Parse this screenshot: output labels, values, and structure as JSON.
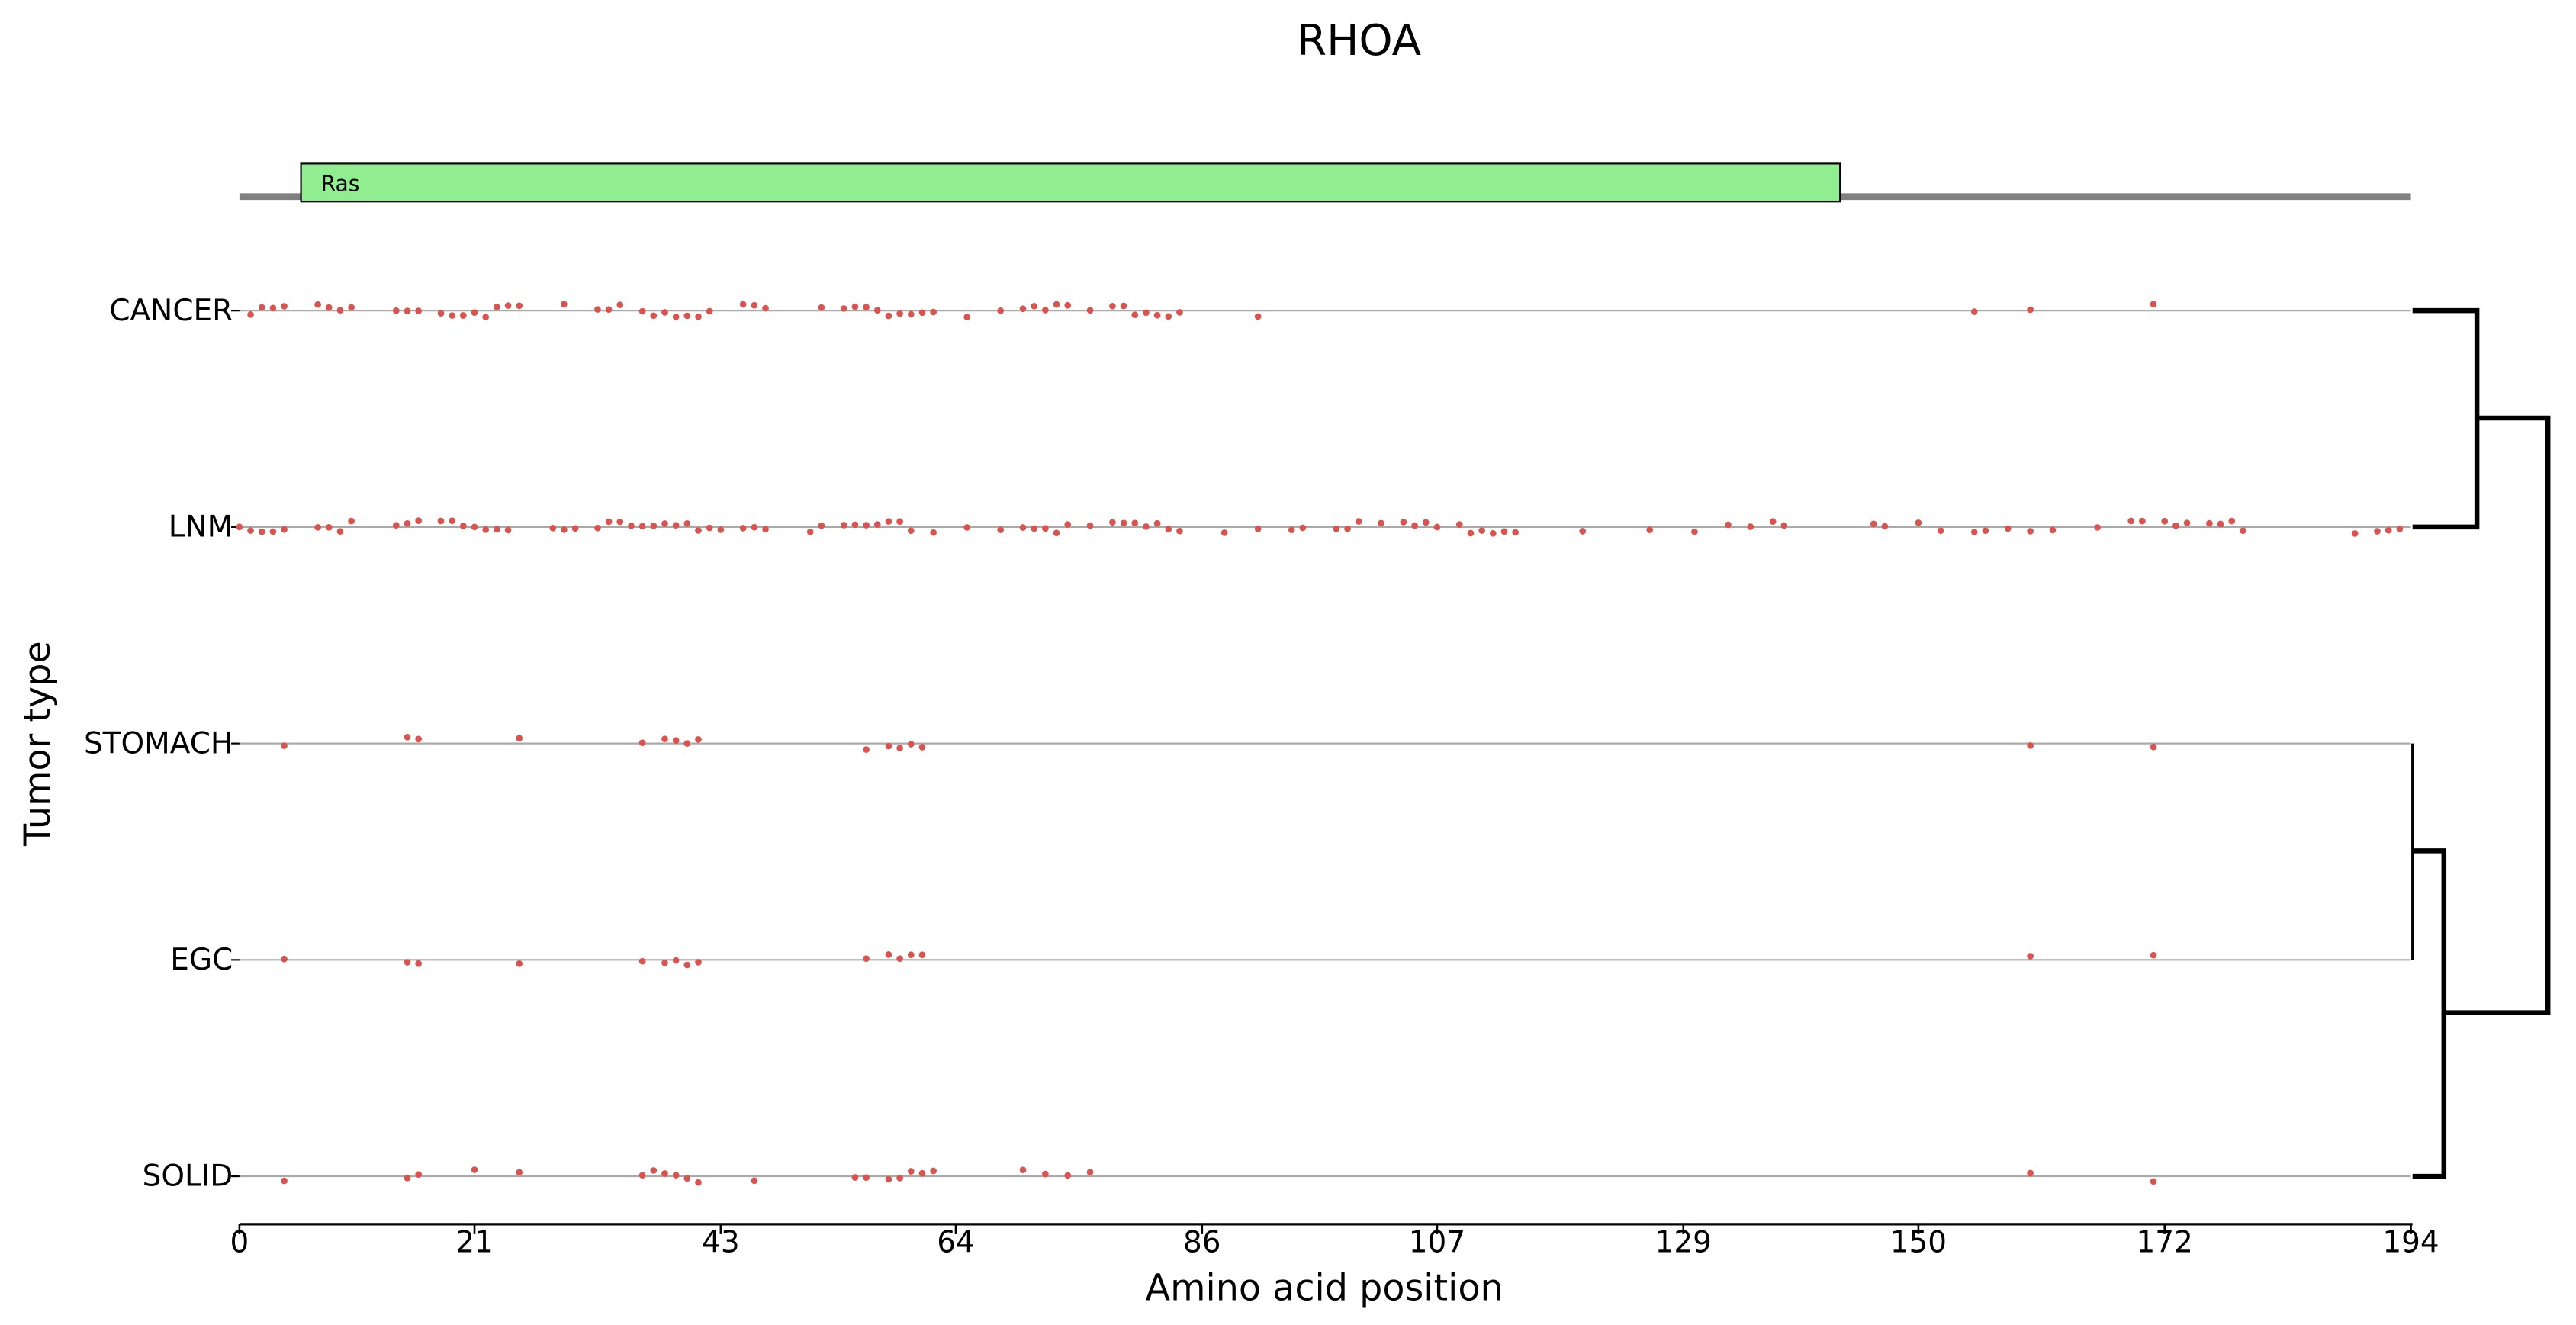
{
  "chart_data": {
    "type": "scatter",
    "title": "RHOA",
    "x_label": "Amino acid position",
    "y_label": "Tumor type",
    "xlim": [
      0,
      194
    ],
    "xticks": [
      0,
      21,
      43,
      64,
      86,
      107,
      129,
      150,
      172,
      194
    ],
    "point_color": "#d9534f",
    "domain_color": "#90ee90",
    "domains": [
      {
        "name": "Ras",
        "start": 5.5,
        "end": 143
      }
    ],
    "rows": [
      {
        "label": "CANCER",
        "positions": [
          1,
          2,
          3,
          4,
          7,
          8,
          9,
          10,
          14,
          15,
          16,
          18,
          19,
          20,
          21,
          22,
          23,
          24,
          25,
          29,
          32,
          33,
          34,
          36,
          37,
          38,
          39,
          40,
          41,
          42,
          45,
          46,
          47,
          52,
          54,
          55,
          56,
          57,
          58,
          59,
          60,
          61,
          62,
          65,
          68,
          70,
          71,
          72,
          73,
          74,
          76,
          78,
          79,
          80,
          81,
          82,
          83,
          84,
          91,
          155,
          160,
          171
        ]
      },
      {
        "label": "LNM",
        "positions": [
          0,
          1,
          2,
          3,
          4,
          7,
          8,
          9,
          10,
          14,
          15,
          16,
          18,
          19,
          20,
          21,
          22,
          23,
          24,
          28,
          29,
          30,
          32,
          33,
          34,
          35,
          36,
          37,
          38,
          39,
          40,
          41,
          42,
          43,
          45,
          46,
          47,
          51,
          52,
          54,
          55,
          56,
          57,
          58,
          59,
          60,
          62,
          65,
          68,
          70,
          71,
          72,
          73,
          74,
          76,
          78,
          79,
          80,
          81,
          82,
          83,
          84,
          88,
          91,
          94,
          95,
          98,
          99,
          100,
          102,
          104,
          105,
          106,
          107,
          109,
          110,
          111,
          112,
          113,
          114,
          120,
          126,
          130,
          133,
          135,
          137,
          138,
          146,
          147,
          150,
          152,
          155,
          156,
          158,
          160,
          162,
          166,
          169,
          170,
          172,
          173,
          174,
          176,
          177,
          178,
          179,
          189,
          191,
          192,
          193
        ]
      },
      {
        "label": "STOMACH",
        "positions": [
          4,
          15,
          16,
          25,
          36,
          38,
          39,
          40,
          41,
          56,
          58,
          59,
          60,
          61,
          160,
          171
        ]
      },
      {
        "label": "EGC",
        "positions": [
          4,
          15,
          16,
          25,
          36,
          38,
          39,
          40,
          41,
          56,
          58,
          59,
          60,
          61,
          160,
          171
        ]
      },
      {
        "label": "SOLID",
        "positions": [
          4,
          15,
          16,
          21,
          25,
          36,
          37,
          38,
          39,
          40,
          41,
          46,
          55,
          56,
          58,
          59,
          60,
          61,
          62,
          70,
          72,
          74,
          76,
          160,
          171
        ]
      }
    ]
  }
}
